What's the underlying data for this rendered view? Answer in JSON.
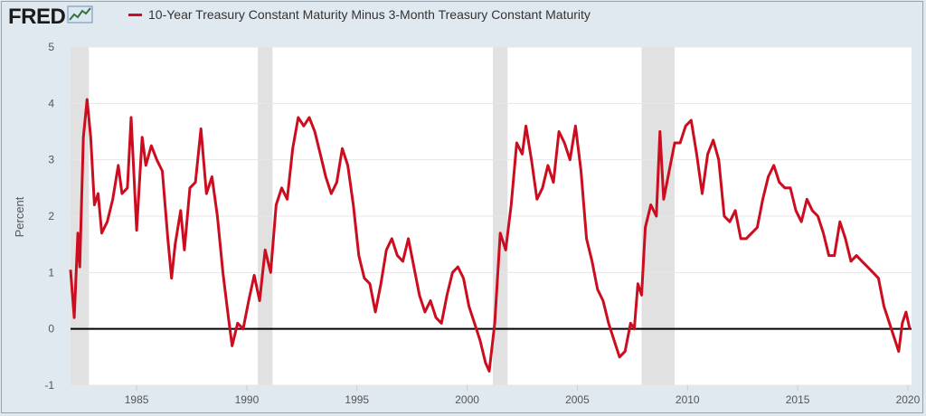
{
  "brand": {
    "logo_text": "FRED",
    "logo_icon": "trend-line-icon"
  },
  "chart_data": {
    "type": "line",
    "title": "",
    "xlabel": "",
    "ylabel": "Percent",
    "series": [
      {
        "name": "10-Year Treasury Constant Maturity Minus 3-Month Treasury Constant Maturity",
        "color": "#cc0d1f",
        "points": [
          [
            "1982-01",
            1.05
          ],
          [
            "1982-03",
            0.2
          ],
          [
            "1982-05",
            1.7
          ],
          [
            "1982-06",
            1.1
          ],
          [
            "1982-08",
            3.4
          ],
          [
            "1982-10",
            4.07
          ],
          [
            "1982-12",
            3.4
          ],
          [
            "1983-02",
            2.2
          ],
          [
            "1983-04",
            2.4
          ],
          [
            "1983-06",
            1.7
          ],
          [
            "1983-09",
            1.9
          ],
          [
            "1983-12",
            2.3
          ],
          [
            "1984-03",
            2.9
          ],
          [
            "1984-05",
            2.4
          ],
          [
            "1984-08",
            2.5
          ],
          [
            "1984-10",
            3.75
          ],
          [
            "1985-01",
            1.75
          ],
          [
            "1985-04",
            3.4
          ],
          [
            "1985-06",
            2.9
          ],
          [
            "1985-09",
            3.25
          ],
          [
            "1985-12",
            3.0
          ],
          [
            "1986-03",
            2.8
          ],
          [
            "1986-06",
            1.6
          ],
          [
            "1986-08",
            0.9
          ],
          [
            "1986-10",
            1.5
          ],
          [
            "1987-01",
            2.1
          ],
          [
            "1987-03",
            1.4
          ],
          [
            "1987-06",
            2.5
          ],
          [
            "1987-09",
            2.6
          ],
          [
            "1987-12",
            3.55
          ],
          [
            "1988-03",
            2.4
          ],
          [
            "1988-06",
            2.7
          ],
          [
            "1988-09",
            2.0
          ],
          [
            "1988-12",
            1.0
          ],
          [
            "1989-03",
            0.2
          ],
          [
            "1989-05",
            -0.3
          ],
          [
            "1989-08",
            0.1
          ],
          [
            "1989-11",
            0.0
          ],
          [
            "1990-02",
            0.5
          ],
          [
            "1990-05",
            0.95
          ],
          [
            "1990-08",
            0.5
          ],
          [
            "1990-11",
            1.4
          ],
          [
            "1991-02",
            1.0
          ],
          [
            "1991-05",
            2.2
          ],
          [
            "1991-08",
            2.5
          ],
          [
            "1991-11",
            2.3
          ],
          [
            "1992-02",
            3.2
          ],
          [
            "1992-05",
            3.75
          ],
          [
            "1992-08",
            3.6
          ],
          [
            "1992-11",
            3.75
          ],
          [
            "1993-02",
            3.5
          ],
          [
            "1993-05",
            3.1
          ],
          [
            "1993-08",
            2.7
          ],
          [
            "1993-11",
            2.4
          ],
          [
            "1994-02",
            2.6
          ],
          [
            "1994-05",
            3.2
          ],
          [
            "1994-08",
            2.9
          ],
          [
            "1994-11",
            2.2
          ],
          [
            "1995-02",
            1.3
          ],
          [
            "1995-05",
            0.9
          ],
          [
            "1995-08",
            0.8
          ],
          [
            "1995-11",
            0.3
          ],
          [
            "1996-02",
            0.8
          ],
          [
            "1996-05",
            1.4
          ],
          [
            "1996-08",
            1.6
          ],
          [
            "1996-11",
            1.3
          ],
          [
            "1997-02",
            1.2
          ],
          [
            "1997-05",
            1.6
          ],
          [
            "1997-08",
            1.1
          ],
          [
            "1997-11",
            0.6
          ],
          [
            "1998-02",
            0.3
          ],
          [
            "1998-05",
            0.5
          ],
          [
            "1998-08",
            0.2
          ],
          [
            "1998-11",
            0.1
          ],
          [
            "1999-02",
            0.6
          ],
          [
            "1999-05",
            1.0
          ],
          [
            "1999-08",
            1.1
          ],
          [
            "1999-11",
            0.9
          ],
          [
            "2000-02",
            0.4
          ],
          [
            "2000-05",
            0.1
          ],
          [
            "2000-08",
            -0.2
          ],
          [
            "2000-11",
            -0.6
          ],
          [
            "2001-01",
            -0.75
          ],
          [
            "2001-04",
            0.1
          ],
          [
            "2001-07",
            1.7
          ],
          [
            "2001-10",
            1.4
          ],
          [
            "2002-01",
            2.2
          ],
          [
            "2002-04",
            3.3
          ],
          [
            "2002-07",
            3.1
          ],
          [
            "2002-09",
            3.6
          ],
          [
            "2002-12",
            3.0
          ],
          [
            "2003-03",
            2.3
          ],
          [
            "2003-06",
            2.5
          ],
          [
            "2003-09",
            2.9
          ],
          [
            "2003-12",
            2.6
          ],
          [
            "2004-03",
            3.5
          ],
          [
            "2004-06",
            3.3
          ],
          [
            "2004-09",
            3.0
          ],
          [
            "2004-12",
            3.6
          ],
          [
            "2005-03",
            2.8
          ],
          [
            "2005-06",
            1.6
          ],
          [
            "2005-09",
            1.2
          ],
          [
            "2005-12",
            0.7
          ],
          [
            "2006-03",
            0.5
          ],
          [
            "2006-06",
            0.1
          ],
          [
            "2006-09",
            -0.2
          ],
          [
            "2006-12",
            -0.5
          ],
          [
            "2007-03",
            -0.4
          ],
          [
            "2007-06",
            0.1
          ],
          [
            "2007-08",
            0.0
          ],
          [
            "2007-10",
            0.8
          ],
          [
            "2007-12",
            0.6
          ],
          [
            "2008-02",
            1.8
          ],
          [
            "2008-05",
            2.2
          ],
          [
            "2008-08",
            2.0
          ],
          [
            "2008-10",
            3.5
          ],
          [
            "2008-12",
            2.3
          ],
          [
            "2009-03",
            2.8
          ],
          [
            "2009-06",
            3.3
          ],
          [
            "2009-09",
            3.3
          ],
          [
            "2009-12",
            3.6
          ],
          [
            "2010-03",
            3.7
          ],
          [
            "2010-06",
            3.1
          ],
          [
            "2010-09",
            2.4
          ],
          [
            "2010-12",
            3.1
          ],
          [
            "2011-03",
            3.35
          ],
          [
            "2011-06",
            3.0
          ],
          [
            "2011-09",
            2.0
          ],
          [
            "2011-12",
            1.9
          ],
          [
            "2012-03",
            2.1
          ],
          [
            "2012-06",
            1.6
          ],
          [
            "2012-09",
            1.6
          ],
          [
            "2012-12",
            1.7
          ],
          [
            "2013-03",
            1.8
          ],
          [
            "2013-06",
            2.3
          ],
          [
            "2013-09",
            2.7
          ],
          [
            "2013-12",
            2.9
          ],
          [
            "2014-03",
            2.6
          ],
          [
            "2014-06",
            2.5
          ],
          [
            "2014-09",
            2.5
          ],
          [
            "2014-12",
            2.1
          ],
          [
            "2015-03",
            1.9
          ],
          [
            "2015-06",
            2.3
          ],
          [
            "2015-09",
            2.1
          ],
          [
            "2015-12",
            2.0
          ],
          [
            "2016-03",
            1.7
          ],
          [
            "2016-06",
            1.3
          ],
          [
            "2016-09",
            1.3
          ],
          [
            "2016-12",
            1.9
          ],
          [
            "2017-03",
            1.6
          ],
          [
            "2017-06",
            1.2
          ],
          [
            "2017-09",
            1.3
          ],
          [
            "2017-12",
            1.2
          ],
          [
            "2018-03",
            1.1
          ],
          [
            "2018-06",
            1.0
          ],
          [
            "2018-09",
            0.9
          ],
          [
            "2018-12",
            0.4
          ],
          [
            "2019-03",
            0.1
          ],
          [
            "2019-05",
            -0.1
          ],
          [
            "2019-08",
            -0.4
          ],
          [
            "2019-10",
            0.1
          ],
          [
            "2019-12",
            0.3
          ],
          [
            "2020-02",
            0.0
          ]
        ]
      }
    ],
    "recessions": [
      [
        "1981-07",
        "1982-11"
      ],
      [
        "1990-07",
        "1991-03"
      ],
      [
        "2001-03",
        "2001-11"
      ],
      [
        "2007-12",
        "2009-06"
      ]
    ],
    "x_ticks": [
      "1985",
      "1990",
      "1995",
      "2000",
      "2005",
      "2010",
      "2015",
      "2020"
    ],
    "y_ticks": [
      "-1",
      "0",
      "1",
      "2",
      "3",
      "4",
      "5"
    ],
    "xlim": [
      "1982-01",
      "2020-03"
    ],
    "ylim": [
      -1,
      5
    ],
    "zero_line": true,
    "grid": true,
    "legend_position": "top-left"
  }
}
